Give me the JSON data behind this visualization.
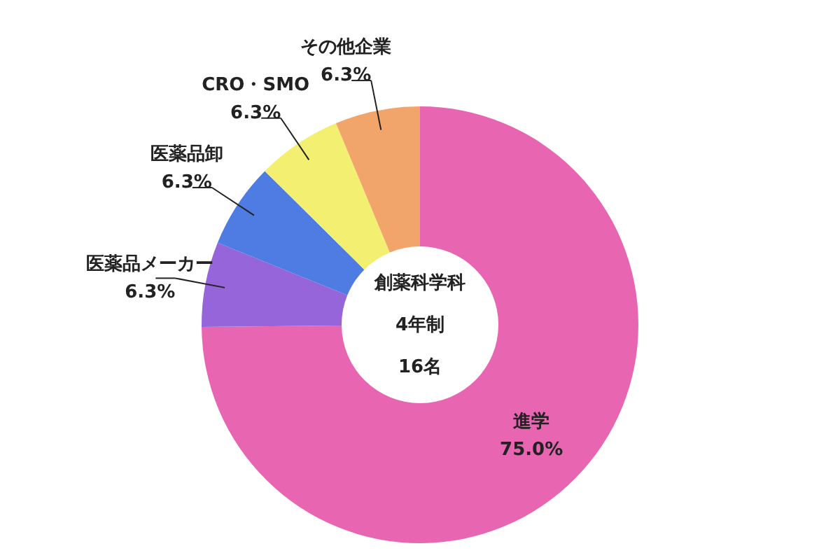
{
  "chart_data": {
    "type": "donut",
    "categories": [
      "進学",
      "医薬品メーカー",
      "医薬品卸",
      "CRO・SMO",
      "その他企業"
    ],
    "values": [
      75.0,
      6.3,
      6.3,
      6.3,
      6.3
    ],
    "value_labels": [
      "75.0%",
      "6.3%",
      "6.3%",
      "6.3%",
      "6.3%"
    ],
    "colors": [
      "#e865b1",
      "#9565d9",
      "#4f7ce2",
      "#f3f071",
      "#f2a56b"
    ],
    "annotations": [
      "創薬科学科",
      "4年制",
      "16名"
    ]
  }
}
